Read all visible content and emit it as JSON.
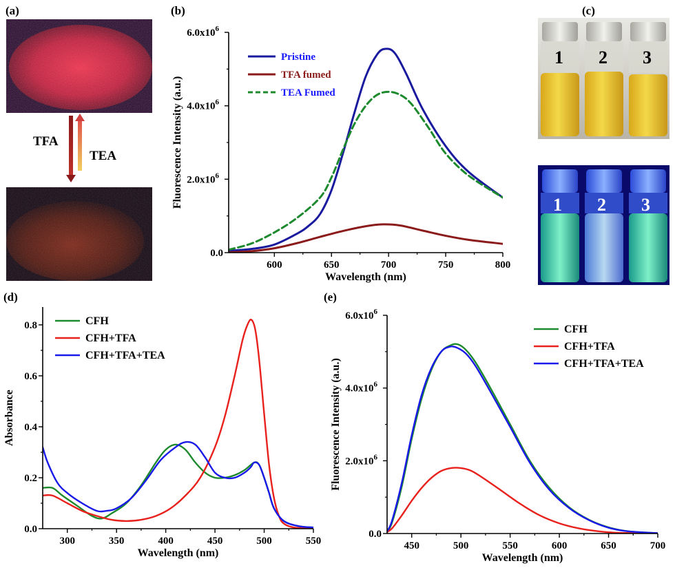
{
  "panel_labels": {
    "a": "(a)",
    "b": "(b)",
    "c": "(c)",
    "d": "(d)",
    "e": "(e)"
  },
  "panel_a": {
    "tfa_label": "TFA",
    "tea_label": "TEA"
  },
  "panel_c": {
    "vial_numbers": [
      "1",
      "2",
      "3"
    ]
  },
  "chart_data": [
    {
      "id": "b",
      "type": "line",
      "title": "",
      "xlabel": "Wavelength (nm)",
      "ylabel": "Fluorescence Intensity (a.u.)",
      "xlim": [
        560,
        800
      ],
      "ylim": [
        0,
        6000000
      ],
      "xticks": [
        600,
        650,
        700,
        750,
        800
      ],
      "xtick_labels": [
        "600",
        "650",
        "700",
        "750",
        "800"
      ],
      "yticks": [
        0,
        2000000,
        4000000,
        6000000
      ],
      "ytick_labels": [
        [
          "0.0",
          ""
        ],
        [
          "2.0x10",
          "6"
        ],
        [
          "4.0x10",
          "6"
        ],
        [
          "6.0x10",
          "6"
        ]
      ],
      "legend_position": "top-left",
      "series": [
        {
          "name": "Pristine",
          "color": "#1a1a9e",
          "dash": "none",
          "legend_color": "#1a1aff",
          "x": [
            560,
            580,
            600,
            620,
            630,
            640,
            650,
            660,
            670,
            680,
            690,
            697,
            705,
            715,
            730,
            750,
            770,
            800
          ],
          "y": [
            50000,
            100000,
            220000,
            520000,
            730000,
            1050000,
            1700000,
            2700000,
            3800000,
            4800000,
            5400000,
            5550000,
            5450000,
            4900000,
            3900000,
            2900000,
            2200000,
            1500000
          ]
        },
        {
          "name": "TFA fumed",
          "color": "#8b1a1a",
          "dash": "none",
          "legend_color": "#8b1a1a",
          "x": [
            560,
            580,
            600,
            620,
            640,
            660,
            680,
            695,
            710,
            730,
            750,
            770,
            800
          ],
          "y": [
            10000,
            40000,
            120000,
            260000,
            430000,
            590000,
            720000,
            770000,
            740000,
            600000,
            460000,
            350000,
            240000
          ]
        },
        {
          "name": "TEA Fumed",
          "color": "#1e8a2e",
          "dash": "9,5",
          "legend_color": "#1a1aff",
          "x": [
            560,
            580,
            600,
            620,
            640,
            650,
            660,
            670,
            680,
            690,
            700,
            710,
            720,
            735,
            750,
            770,
            800
          ],
          "y": [
            80000,
            250000,
            550000,
            950000,
            1500000,
            2050000,
            2800000,
            3500000,
            4000000,
            4300000,
            4380000,
            4300000,
            4050000,
            3400000,
            2700000,
            2100000,
            1500000
          ]
        }
      ]
    },
    {
      "id": "d",
      "type": "line",
      "title": "",
      "xlabel": "Wavelength (nm)",
      "ylabel": "Absorbance",
      "xlim": [
        275,
        550
      ],
      "ylim": [
        0,
        0.87
      ],
      "xticks": [
        300,
        350,
        400,
        450,
        500,
        550
      ],
      "xtick_labels": [
        "300",
        "350",
        "400",
        "450",
        "500",
        "550"
      ],
      "yticks": [
        0,
        0.2,
        0.4,
        0.6,
        0.8
      ],
      "ytick_labels": [
        [
          "0.0",
          ""
        ],
        [
          "0.2",
          ""
        ],
        [
          "0.4",
          ""
        ],
        [
          "0.6",
          ""
        ],
        [
          "0.8",
          ""
        ]
      ],
      "legend_position": "top-left",
      "series": [
        {
          "name": "CFH",
          "color": "#1e8a2e",
          "dash": "none",
          "legend_color": "#000",
          "x": [
            275,
            285,
            295,
            310,
            325,
            335,
            345,
            360,
            375,
            390,
            400,
            410,
            420,
            430,
            440,
            450,
            460,
            470,
            480,
            490,
            495,
            500,
            505,
            510,
            520,
            535,
            550
          ],
          "y": [
            0.16,
            0.16,
            0.13,
            0.09,
            0.05,
            0.04,
            0.06,
            0.1,
            0.17,
            0.26,
            0.31,
            0.33,
            0.31,
            0.26,
            0.22,
            0.2,
            0.2,
            0.21,
            0.23,
            0.26,
            0.25,
            0.2,
            0.14,
            0.08,
            0.03,
            0.01,
            0.005
          ]
        },
        {
          "name": "CFH+TFA",
          "color": "#e8211c",
          "dash": "none",
          "legend_color": "#000",
          "x": [
            275,
            285,
            300,
            315,
            330,
            345,
            360,
            375,
            390,
            405,
            420,
            435,
            450,
            460,
            470,
            478,
            483,
            487,
            491,
            495,
            500,
            505,
            510,
            515,
            520,
            530,
            550
          ],
          "y": [
            0.13,
            0.13,
            0.1,
            0.07,
            0.05,
            0.035,
            0.03,
            0.035,
            0.05,
            0.08,
            0.13,
            0.2,
            0.32,
            0.44,
            0.6,
            0.74,
            0.8,
            0.82,
            0.78,
            0.66,
            0.45,
            0.25,
            0.12,
            0.05,
            0.02,
            0.005,
            0.0
          ]
        },
        {
          "name": "CFH+TFA+TEA",
          "color": "#1a1ae8",
          "dash": "none",
          "legend_color": "#000",
          "x": [
            275,
            280,
            290,
            300,
            315,
            330,
            340,
            350,
            365,
            380,
            395,
            410,
            420,
            430,
            440,
            450,
            460,
            470,
            480,
            486,
            490,
            495,
            500,
            505,
            510,
            520,
            535,
            550
          ],
          "y": [
            0.32,
            0.26,
            0.18,
            0.14,
            0.1,
            0.07,
            0.07,
            0.08,
            0.12,
            0.19,
            0.27,
            0.32,
            0.34,
            0.33,
            0.28,
            0.22,
            0.2,
            0.2,
            0.22,
            0.24,
            0.26,
            0.25,
            0.2,
            0.14,
            0.08,
            0.03,
            0.01,
            0.005
          ]
        }
      ]
    },
    {
      "id": "e",
      "type": "line",
      "title": "",
      "xlabel": "Wavelength (nm)",
      "ylabel": "Fluorescence Intensity (a.u.)",
      "xlim": [
        425,
        700
      ],
      "ylim": [
        0,
        6000000
      ],
      "xticks": [
        450,
        500,
        550,
        600,
        650,
        700
      ],
      "xtick_labels": [
        "450",
        "500",
        "550",
        "600",
        "650",
        "700"
      ],
      "yticks": [
        0,
        2000000,
        4000000,
        6000000
      ],
      "ytick_labels": [
        [
          "0.0",
          ""
        ],
        [
          "2.0x10",
          "6"
        ],
        [
          "4.0x10",
          "6"
        ],
        [
          "6.0x10",
          "6"
        ]
      ],
      "legend_position": "top-right",
      "series": [
        {
          "name": "CFH",
          "color": "#1e8a2e",
          "dash": "none",
          "legend_color": "#000",
          "x": [
            425,
            430,
            440,
            450,
            460,
            470,
            480,
            490,
            497,
            505,
            515,
            530,
            550,
            570,
            590,
            610,
            630,
            650,
            670,
            700
          ],
          "y": [
            50000,
            300000,
            1300000,
            2600000,
            3700000,
            4500000,
            5000000,
            5180000,
            5200000,
            5050000,
            4700000,
            4000000,
            3000000,
            2000000,
            1250000,
            720000,
            380000,
            170000,
            60000,
            10000
          ]
        },
        {
          "name": "CFH+TFA",
          "color": "#e8211c",
          "dash": "none",
          "legend_color": "#000",
          "x": [
            425,
            430,
            440,
            450,
            460,
            470,
            480,
            490,
            500,
            510,
            520,
            540,
            560,
            580,
            600,
            620,
            640,
            660,
            700
          ],
          "y": [
            40000,
            140000,
            500000,
            900000,
            1250000,
            1530000,
            1720000,
            1800000,
            1800000,
            1730000,
            1570000,
            1200000,
            820000,
            500000,
            280000,
            140000,
            60000,
            20000,
            5000
          ]
        },
        {
          "name": "CFH+TFA+TEA",
          "color": "#1a1ae8",
          "dash": "none",
          "legend_color": "#000",
          "x": [
            425,
            430,
            440,
            450,
            460,
            470,
            480,
            488,
            495,
            505,
            515,
            530,
            550,
            570,
            590,
            610,
            630,
            650,
            670,
            700
          ],
          "y": [
            60000,
            350000,
            1400000,
            2700000,
            3800000,
            4550000,
            5000000,
            5130000,
            5120000,
            4950000,
            4600000,
            3900000,
            2930000,
            1950000,
            1200000,
            700000,
            370000,
            160000,
            60000,
            10000
          ]
        }
      ]
    }
  ]
}
